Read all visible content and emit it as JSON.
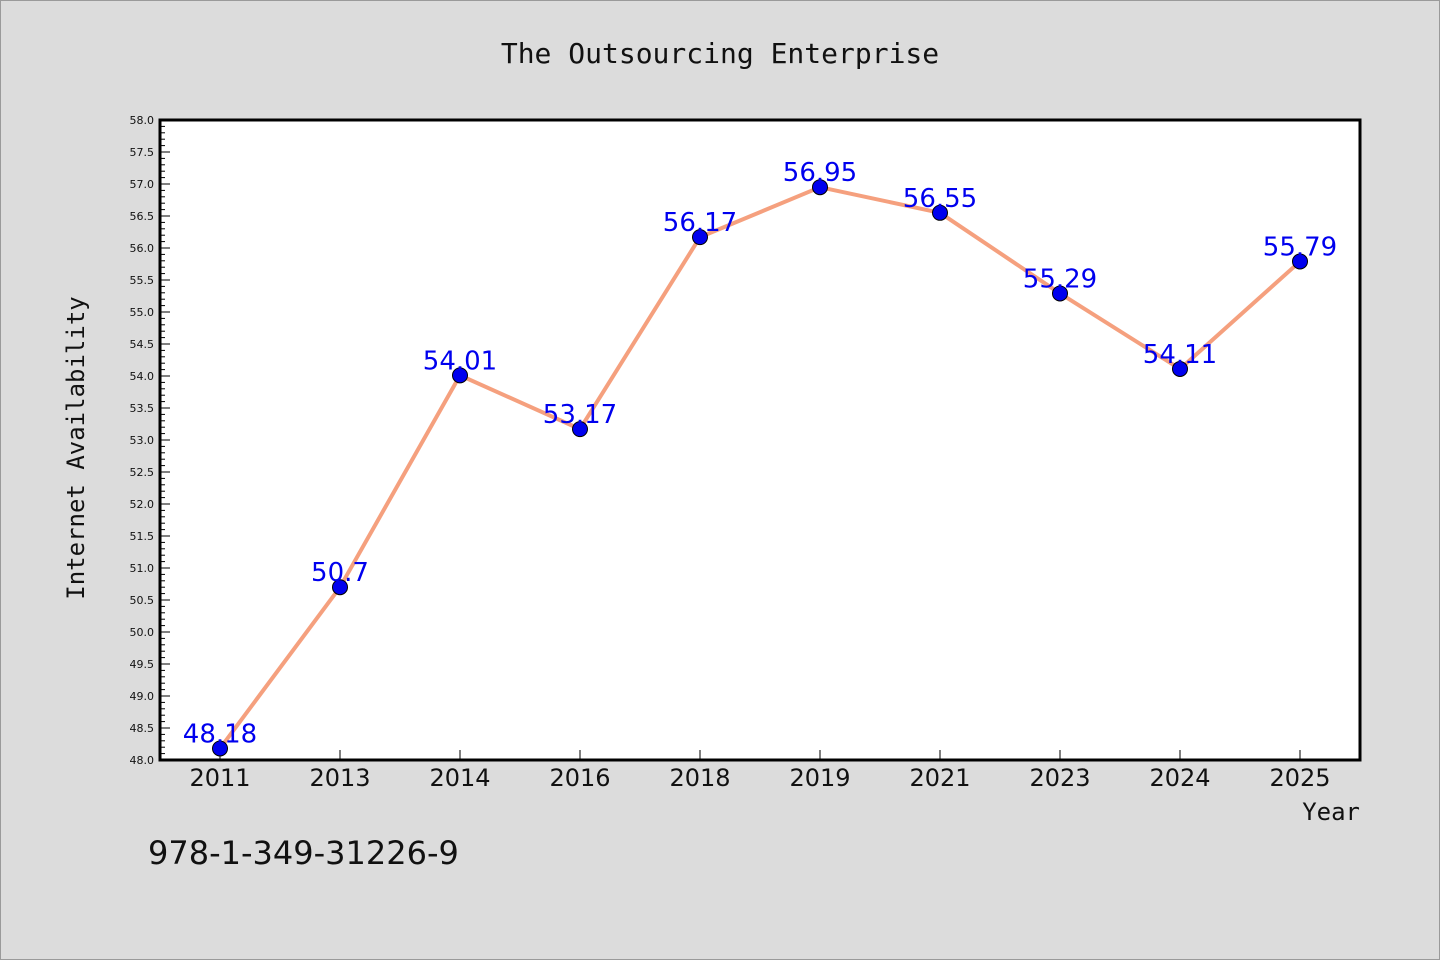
{
  "chart_data": {
    "type": "line",
    "title": "The Outsourcing Enterprise",
    "xlabel": "Year",
    "ylabel": "Internet Availability",
    "categories": [
      "2011",
      "2013",
      "2014",
      "2016",
      "2018",
      "2019",
      "2021",
      "2023",
      "2024",
      "2025"
    ],
    "series": [
      {
        "values": [
          48.18,
          50.7,
          54.01,
          53.17,
          56.17,
          56.95,
          56.55,
          55.29,
          54.11,
          55.79
        ],
        "labels": [
          "48.18",
          "50.7",
          "54.01",
          "53.17",
          "56.17",
          "56.95",
          "56.55",
          "55.29",
          "54.11",
          "55.79"
        ],
        "line_color": "#f5a07e",
        "marker_color": "#0000ee",
        "label_color": "#0000ee"
      }
    ],
    "ylim": [
      48.0,
      58.0
    ],
    "yticks": [
      "48.0",
      "48.5",
      "49.0",
      "49.5",
      "50.0",
      "50.5",
      "51.0",
      "51.5",
      "52.0",
      "52.5",
      "53.0",
      "53.5",
      "54.0",
      "54.5",
      "55.0",
      "55.5",
      "56.0",
      "56.5",
      "57.0",
      "57.5",
      "58.0"
    ],
    "grid": false,
    "legend": "none"
  },
  "annotation": "978-1-349-31226-9",
  "colors": {
    "background": "#dcdcdc",
    "plot_background": "#ffffff",
    "axis": "#000000"
  }
}
